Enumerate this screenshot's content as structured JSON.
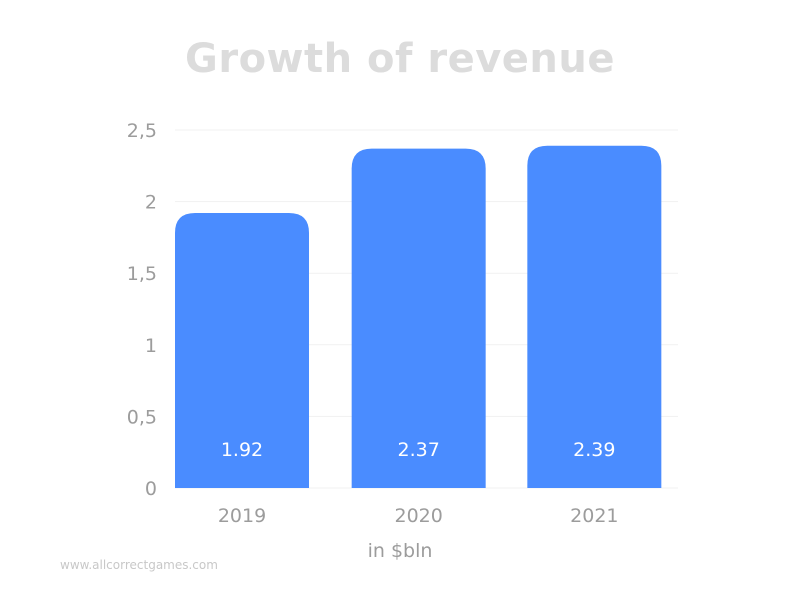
{
  "chart_data": {
    "type": "bar",
    "title": "Growth of revenue",
    "categories": [
      "2019",
      "2020",
      "2021"
    ],
    "values": [
      1.92,
      2.37,
      2.39
    ],
    "data_labels": [
      "1.92",
      "2.37",
      "2.39"
    ],
    "xlabel": "in $bln",
    "ylabel": "",
    "ylim": [
      0,
      2.5
    ],
    "yticks": [
      0,
      0.5,
      1,
      1.5,
      2,
      2.5
    ],
    "ytick_labels": [
      "0",
      "0,5",
      "1",
      "1,5",
      "2",
      "2,5"
    ],
    "grid": true,
    "legend": "none",
    "bar_color": "#4a8cff",
    "label_color": "#ffffff",
    "title_color": "#dcdcdc",
    "axis_text_color": "#9c9c9c"
  },
  "watermark": "www.allcorrectgames.com"
}
